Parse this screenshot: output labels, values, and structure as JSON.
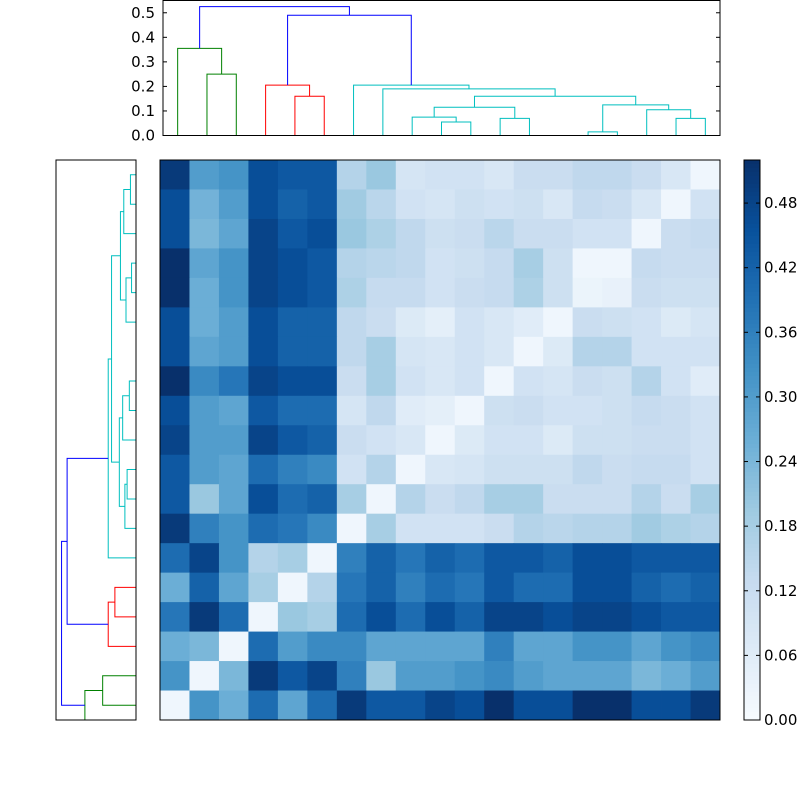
{
  "chart_data": [
    {
      "type": "heatmap",
      "rows": 19,
      "cols": 19,
      "colormap": "Blues",
      "colorbar": {
        "min": 0.0,
        "max": 0.52,
        "ticks": [
          0.0,
          0.06,
          0.12,
          0.18,
          0.24,
          0.3,
          0.36,
          0.42,
          0.48
        ],
        "tick_labels": [
          "0.00",
          "0.06",
          "0.12",
          "0.18",
          "0.24",
          "0.30",
          "0.36",
          "0.42",
          "0.48"
        ]
      },
      "values": [
        [
          0.5,
          0.3,
          0.32,
          0.46,
          0.44,
          0.44,
          0.16,
          0.2,
          0.09,
          0.1,
          0.1,
          0.08,
          0.12,
          0.12,
          0.14,
          0.14,
          0.12,
          0.08,
          0.02
        ],
        [
          0.46,
          0.25,
          0.3,
          0.46,
          0.42,
          0.44,
          0.19,
          0.15,
          0.1,
          0.09,
          0.11,
          0.1,
          0.11,
          0.08,
          0.13,
          0.12,
          0.08,
          0.02,
          0.1
        ],
        [
          0.46,
          0.24,
          0.28,
          0.48,
          0.44,
          0.46,
          0.2,
          0.17,
          0.14,
          0.11,
          0.12,
          0.15,
          0.12,
          0.12,
          0.1,
          0.1,
          0.02,
          0.12,
          0.13
        ],
        [
          0.52,
          0.28,
          0.32,
          0.48,
          0.46,
          0.44,
          0.16,
          0.15,
          0.14,
          0.1,
          0.11,
          0.13,
          0.18,
          0.11,
          0.02,
          0.02,
          0.13,
          0.12,
          0.12
        ],
        [
          0.52,
          0.26,
          0.32,
          0.48,
          0.46,
          0.44,
          0.17,
          0.13,
          0.13,
          0.1,
          0.12,
          0.13,
          0.17,
          0.11,
          0.03,
          0.04,
          0.12,
          0.11,
          0.11
        ],
        [
          0.46,
          0.26,
          0.3,
          0.46,
          0.42,
          0.42,
          0.14,
          0.12,
          0.07,
          0.05,
          0.1,
          0.08,
          0.06,
          0.02,
          0.12,
          0.11,
          0.1,
          0.07,
          0.09
        ],
        [
          0.46,
          0.28,
          0.3,
          0.46,
          0.42,
          0.42,
          0.14,
          0.18,
          0.09,
          0.08,
          0.1,
          0.08,
          0.02,
          0.07,
          0.16,
          0.16,
          0.1,
          0.1,
          0.1
        ],
        [
          0.52,
          0.34,
          0.38,
          0.48,
          0.46,
          0.46,
          0.12,
          0.18,
          0.1,
          0.08,
          0.1,
          0.02,
          0.1,
          0.09,
          0.12,
          0.11,
          0.16,
          0.1,
          0.06
        ],
        [
          0.46,
          0.3,
          0.28,
          0.44,
          0.4,
          0.4,
          0.09,
          0.14,
          0.06,
          0.05,
          0.02,
          0.11,
          0.12,
          0.1,
          0.1,
          0.11,
          0.13,
          0.12,
          0.1
        ],
        [
          0.48,
          0.3,
          0.3,
          0.48,
          0.44,
          0.42,
          0.12,
          0.1,
          0.08,
          0.02,
          0.07,
          0.1,
          0.1,
          0.07,
          0.11,
          0.11,
          0.12,
          0.12,
          0.1
        ],
        [
          0.44,
          0.3,
          0.28,
          0.4,
          0.36,
          0.34,
          0.1,
          0.16,
          0.02,
          0.08,
          0.09,
          0.11,
          0.11,
          0.11,
          0.14,
          0.12,
          0.13,
          0.13,
          0.1
        ],
        [
          0.44,
          0.2,
          0.28,
          0.46,
          0.4,
          0.42,
          0.18,
          0.02,
          0.16,
          0.12,
          0.14,
          0.18,
          0.18,
          0.12,
          0.12,
          0.12,
          0.16,
          0.12,
          0.18
        ],
        [
          0.5,
          0.36,
          0.32,
          0.4,
          0.38,
          0.34,
          0.02,
          0.18,
          0.1,
          0.1,
          0.1,
          0.12,
          0.16,
          0.15,
          0.16,
          0.16,
          0.19,
          0.17,
          0.16
        ],
        [
          0.4,
          0.48,
          0.32,
          0.16,
          0.18,
          0.02,
          0.36,
          0.42,
          0.38,
          0.42,
          0.4,
          0.44,
          0.44,
          0.42,
          0.46,
          0.46,
          0.44,
          0.44,
          0.44
        ],
        [
          0.26,
          0.42,
          0.28,
          0.18,
          0.02,
          0.16,
          0.38,
          0.42,
          0.36,
          0.4,
          0.38,
          0.44,
          0.4,
          0.4,
          0.46,
          0.46,
          0.42,
          0.4,
          0.42
        ],
        [
          0.38,
          0.5,
          0.4,
          0.02,
          0.2,
          0.18,
          0.4,
          0.46,
          0.4,
          0.46,
          0.42,
          0.48,
          0.48,
          0.46,
          0.48,
          0.48,
          0.46,
          0.44,
          0.44
        ],
        [
          0.26,
          0.24,
          0.02,
          0.4,
          0.3,
          0.34,
          0.34,
          0.28,
          0.28,
          0.28,
          0.28,
          0.36,
          0.28,
          0.28,
          0.32,
          0.32,
          0.28,
          0.32,
          0.34
        ],
        [
          0.32,
          0.02,
          0.24,
          0.5,
          0.44,
          0.48,
          0.36,
          0.2,
          0.3,
          0.3,
          0.32,
          0.34,
          0.3,
          0.28,
          0.28,
          0.28,
          0.24,
          0.26,
          0.3
        ],
        [
          0.02,
          0.32,
          0.26,
          0.4,
          0.28,
          0.4,
          0.5,
          0.44,
          0.44,
          0.48,
          0.46,
          0.52,
          0.46,
          0.46,
          0.52,
          0.52,
          0.46,
          0.46,
          0.5
        ]
      ]
    },
    {
      "type": "dendrogram",
      "orientation": "top",
      "ylim": [
        0,
        0.55
      ],
      "yticks": [
        0.0,
        0.1,
        0.2,
        0.3,
        0.4,
        0.5
      ],
      "ytick_labels": [
        "0.0",
        "0.1",
        "0.2",
        "0.3",
        "0.4",
        "0.5"
      ],
      "links": [
        {
          "xs": [
            15,
            15,
            25,
            25
          ],
          "ys": [
            0.0,
            0.25,
            0.25,
            0.0
          ],
          "color": "#008000"
        },
        {
          "xs": [
            5,
            5,
            20,
            20
          ],
          "ys": [
            0.0,
            0.355,
            0.355,
            0.25
          ],
          "color": "#008000"
        },
        {
          "xs": [
            45,
            45,
            55,
            55
          ],
          "ys": [
            0.0,
            0.16,
            0.16,
            0.0
          ],
          "color": "#ff0000"
        },
        {
          "xs": [
            35,
            35,
            50,
            50
          ],
          "ys": [
            0.0,
            0.205,
            0.205,
            0.16
          ],
          "color": "#ff0000"
        },
        {
          "xs": [
            95,
            95,
            105,
            105
          ],
          "ys": [
            0.0,
            0.055,
            0.055,
            0.0
          ],
          "color": "#00bfbf"
        },
        {
          "xs": [
            85,
            85,
            100,
            100
          ],
          "ys": [
            0.0,
            0.075,
            0.075,
            0.055
          ],
          "color": "#00bfbf"
        },
        {
          "xs": [
            115,
            115,
            125,
            125
          ],
          "ys": [
            0.0,
            0.07,
            0.07,
            0.0
          ],
          "color": "#00bfbf"
        },
        {
          "xs": [
            92.5,
            92.5,
            120,
            120
          ],
          "ys": [
            0.075,
            0.115,
            0.115,
            0.07
          ],
          "color": "#00bfbf"
        },
        {
          "xs": [
            145,
            145,
            155,
            155
          ],
          "ys": [
            0.0,
            0.015,
            0.015,
            0.0
          ],
          "color": "#00bfbf"
        },
        {
          "xs": [
            175,
            175,
            185,
            185
          ],
          "ys": [
            0.0,
            0.07,
            0.07,
            0.0
          ],
          "color": "#00bfbf"
        },
        {
          "xs": [
            165,
            165,
            180,
            180
          ],
          "ys": [
            0.0,
            0.105,
            0.105,
            0.07
          ],
          "color": "#00bfbf"
        },
        {
          "xs": [
            150,
            150,
            172.5,
            172.5
          ],
          "ys": [
            0.015,
            0.125,
            0.125,
            0.105
          ],
          "color": "#00bfbf"
        },
        {
          "xs": [
            106.25,
            106.25,
            161.25,
            161.25
          ],
          "ys": [
            0.115,
            0.16,
            0.16,
            0.125
          ],
          "color": "#00bfbf"
        },
        {
          "xs": [
            75,
            75,
            133.75,
            133.75
          ],
          "ys": [
            0.0,
            0.19,
            0.19,
            0.16
          ],
          "color": "#00bfbf"
        },
        {
          "xs": [
            65,
            65,
            104.375,
            104.375
          ],
          "ys": [
            0.0,
            0.205,
            0.205,
            0.19
          ],
          "color": "#00bfbf"
        },
        {
          "xs": [
            42.5,
            42.5,
            84.6875,
            84.6875
          ],
          "ys": [
            0.205,
            0.49,
            0.49,
            0.205
          ],
          "color": "#0000ff"
        },
        {
          "xs": [
            12.5,
            12.5,
            63.59,
            63.59
          ],
          "ys": [
            0.355,
            0.525,
            0.525,
            0.49
          ],
          "color": "#0000ff"
        }
      ]
    },
    {
      "type": "dendrogram",
      "orientation": "left",
      "leaves": 19,
      "links": [
        {
          "ys": [
            175,
            175,
            185,
            185
          ],
          "xs": [
            0.0,
            0.025,
            0.025,
            0.0
          ],
          "color": "#00bfbf"
        },
        {
          "ys": [
            165,
            165,
            180,
            180
          ],
          "xs": [
            0.0,
            0.055,
            0.055,
            0.025
          ],
          "color": "#00bfbf"
        },
        {
          "ys": [
            145,
            145,
            155,
            155
          ],
          "xs": [
            0.0,
            0.02,
            0.02,
            0.0
          ],
          "color": "#00bfbf"
        },
        {
          "ys": [
            135,
            135,
            150,
            150
          ],
          "xs": [
            0.0,
            0.045,
            0.045,
            0.02
          ],
          "color": "#00bfbf"
        },
        {
          "ys": [
            172.5,
            172.5,
            142.5,
            142.5
          ],
          "xs": [
            0.055,
            0.07,
            0.07,
            0.045
          ],
          "color": "#00bfbf"
        },
        {
          "ys": [
            105,
            105,
            115,
            115
          ],
          "xs": [
            0.0,
            0.03,
            0.03,
            0.0
          ],
          "color": "#00bfbf"
        },
        {
          "ys": [
            95,
            95,
            110,
            110
          ],
          "xs": [
            0.0,
            0.06,
            0.06,
            0.03
          ],
          "color": "#00bfbf"
        },
        {
          "ys": [
            75,
            75,
            85,
            85
          ],
          "xs": [
            0.0,
            0.04,
            0.04,
            0.0
          ],
          "color": "#00bfbf"
        },
        {
          "ys": [
            65,
            65,
            80,
            80
          ],
          "xs": [
            0.0,
            0.05,
            0.05,
            0.04
          ],
          "color": "#00bfbf"
        },
        {
          "ys": [
            102.5,
            102.5,
            72.5,
            72.5
          ],
          "xs": [
            0.06,
            0.075,
            0.075,
            0.05
          ],
          "color": "#00bfbf"
        },
        {
          "ys": [
            157.5,
            157.5,
            87.5,
            87.5
          ],
          "xs": [
            0.07,
            0.11,
            0.11,
            0.075
          ],
          "color": "#00bfbf"
        },
        {
          "ys": [
            55,
            55,
            122.5,
            122.5
          ],
          "xs": [
            0.0,
            0.125,
            0.125,
            0.11
          ],
          "color": "#00bfbf"
        },
        {
          "ys": [
            35,
            35,
            45,
            45
          ],
          "xs": [
            0.0,
            0.095,
            0.095,
            0.0
          ],
          "color": "#ff0000"
        },
        {
          "ys": [
            25,
            25,
            40,
            40
          ],
          "xs": [
            0.0,
            0.125,
            0.125,
            0.095
          ],
          "color": "#ff0000"
        },
        {
          "ys": [
            5,
            5,
            15,
            15
          ],
          "xs": [
            0.0,
            0.15,
            0.15,
            0.0
          ],
          "color": "#008000"
        },
        {
          "ys": [
            10,
            10,
            0,
            0
          ],
          "xs": [
            0.15,
            0.23,
            0.23,
            0.0
          ],
          "color": "#008000"
        },
        {
          "ys": [
            88.75,
            88.75,
            32.5,
            32.5
          ],
          "xs": [
            0.125,
            0.31,
            0.31,
            0.125
          ],
          "color": "#0000ff"
        },
        {
          "ys": [
            60.6,
            60.6,
            5,
            5
          ],
          "xs": [
            0.31,
            0.335,
            0.335,
            0.23
          ],
          "color": "#0000ff"
        }
      ]
    }
  ]
}
